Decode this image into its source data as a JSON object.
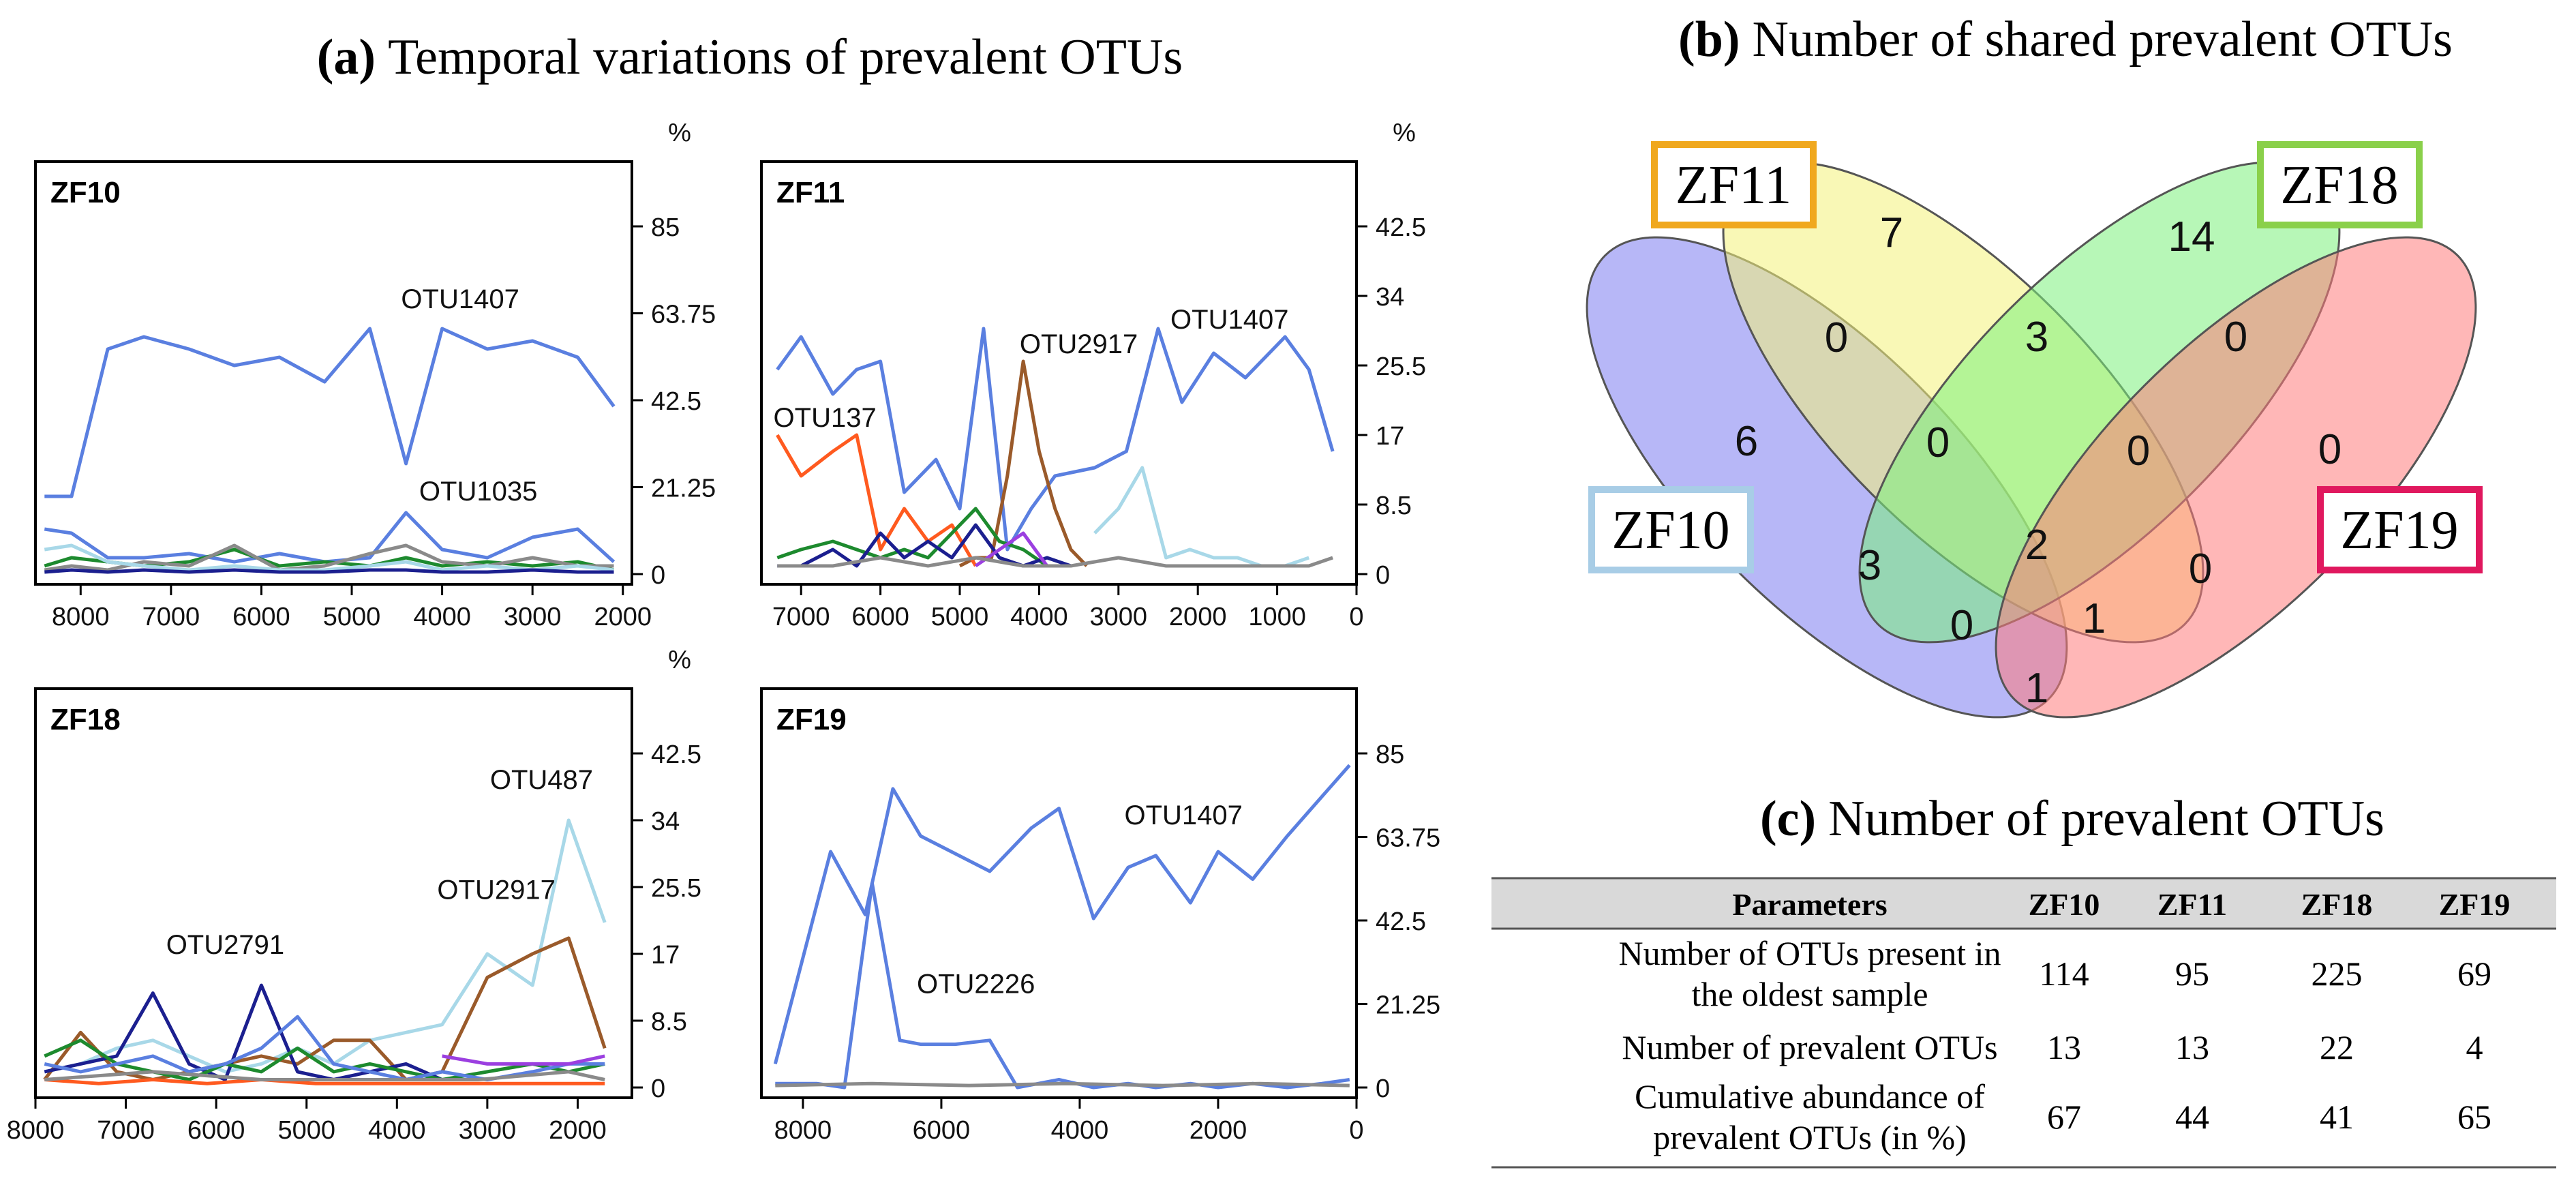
{
  "titles": {
    "a_tag": "(a)",
    "a_text": "Temporal variations of prevalent OTUs",
    "b_tag": "(b)",
    "b_text": "Number of shared prevalent OTUs",
    "c_tag": "(c)",
    "c_text": "Number of prevalent OTUs"
  },
  "colors": {
    "blue": "#5a7fe0",
    "lightblue": "#a8d8e8",
    "navy": "#1b1f8f",
    "green": "#1d8a2e",
    "brown": "#9a5a2a",
    "orange": "#ff5a1f",
    "gray": "#8a8a8a",
    "purple": "#9b3fe0"
  },
  "chart_data": [
    {
      "type": "line",
      "panel": "ZF10",
      "ylabel": "%",
      "xticks": [
        8000,
        7000,
        6000,
        5000,
        4000,
        3000,
        2000
      ],
      "xlim": [
        8500,
        1900
      ],
      "yticks": [
        0,
        21.25,
        42.5,
        63.75,
        85
      ],
      "ylim": [
        0,
        85
      ],
      "annotations": [
        {
          "text": "OTU1407",
          "x": 3800,
          "y": 65
        },
        {
          "text": "OTU1035",
          "x": 3600,
          "y": 18
        }
      ],
      "series": [
        {
          "color": "blue",
          "x": [
            8400,
            8100,
            7700,
            7300,
            6800,
            6300,
            5800,
            5300,
            4800,
            4400,
            4000,
            3500,
            3000,
            2500,
            2100
          ],
          "y": [
            19,
            19,
            55,
            58,
            55,
            51,
            53,
            47,
            60,
            27,
            60,
            55,
            57,
            53,
            41
          ]
        },
        {
          "color": "blue",
          "x": [
            8400,
            8100,
            7700,
            7300,
            6800,
            6300,
            5800,
            5300,
            4800,
            4400,
            4000,
            3500,
            3000,
            2500,
            2100
          ],
          "y": [
            11,
            10,
            4,
            4,
            5,
            3,
            5,
            3,
            4,
            15,
            6,
            4,
            9,
            11,
            3
          ]
        },
        {
          "color": "green",
          "x": [
            8400,
            8100,
            7700,
            7300,
            6800,
            6300,
            5800,
            5300,
            4800,
            4400,
            4000,
            3500,
            3000,
            2500,
            2100
          ],
          "y": [
            2,
            4,
            3,
            2,
            3,
            6,
            2,
            3,
            2,
            4,
            2,
            3,
            2,
            3,
            1
          ]
        },
        {
          "color": "gray",
          "x": [
            8400,
            8100,
            7700,
            7300,
            6800,
            6300,
            5800,
            5300,
            4800,
            4400,
            4000,
            3500,
            3000,
            2500,
            2100
          ],
          "y": [
            1,
            2,
            1,
            3,
            2,
            7,
            1,
            2,
            5,
            7,
            3,
            2,
            4,
            2,
            2
          ]
        },
        {
          "color": "lightblue",
          "x": [
            8400,
            8100,
            7700,
            7300,
            6800,
            6300,
            5800,
            5300,
            4800,
            4400,
            4000,
            3500,
            3000,
            2500,
            2100
          ],
          "y": [
            6,
            7,
            3,
            2,
            1,
            2,
            1,
            1,
            2,
            3,
            1,
            2,
            1,
            2,
            1
          ]
        },
        {
          "color": "navy",
          "x": [
            8400,
            8100,
            7700,
            7300,
            6800,
            6300,
            5800,
            5300,
            4800,
            4400,
            4000,
            3500,
            3000,
            2500,
            2100
          ],
          "y": [
            0.5,
            1,
            0.5,
            1,
            0.5,
            1,
            0.5,
            0.5,
            1,
            1,
            0.5,
            0.5,
            1,
            0.5,
            0.5
          ]
        }
      ]
    },
    {
      "type": "line",
      "panel": "ZF11",
      "ylabel": "%",
      "xticks": [
        7000,
        6000,
        5000,
        4000,
        3000,
        2000,
        1000,
        0
      ],
      "xlim": [
        7500,
        0
      ],
      "yticks": [
        0,
        8.5,
        17,
        25.5,
        34,
        42.5
      ],
      "ylim": [
        0,
        42.5
      ],
      "annotations": [
        {
          "text": "OTU2917",
          "x": 3500,
          "y": 27
        },
        {
          "text": "OTU1407",
          "x": 1600,
          "y": 30
        },
        {
          "text": "OTU137",
          "x": 6700,
          "y": 18
        }
      ],
      "series": [
        {
          "color": "blue",
          "x": [
            7300,
            7000,
            6600,
            6300,
            6000,
            5700,
            5300,
            5000,
            4700,
            4400,
            4100,
            3800,
            3300,
            2900,
            2500,
            2200,
            1800,
            1400,
            900,
            600,
            300
          ],
          "y": [
            25,
            29,
            22,
            25,
            26,
            10,
            14,
            8,
            30,
            3,
            8,
            12,
            13,
            15,
            30,
            21,
            27,
            24,
            29,
            25,
            15
          ]
        },
        {
          "color": "brown",
          "x": [
            5000,
            4800,
            4600,
            4400,
            4200,
            4000,
            3800,
            3600,
            3400
          ],
          "y": [
            1,
            2,
            2,
            12,
            26,
            15,
            8,
            3,
            1
          ]
        },
        {
          "color": "orange",
          "x": [
            7300,
            7000,
            6600,
            6300,
            6000,
            5700,
            5400,
            5100,
            4800
          ],
          "y": [
            17,
            12,
            15,
            17,
            3,
            8,
            4,
            6,
            1
          ]
        },
        {
          "color": "lightblue",
          "x": [
            3300,
            3000,
            2700,
            2400,
            2100,
            1800,
            1500,
            1200,
            900,
            600
          ],
          "y": [
            5,
            8,
            13,
            2,
            3,
            2,
            2,
            1,
            1,
            2
          ]
        },
        {
          "color": "green",
          "x": [
            7300,
            7000,
            6600,
            6300,
            6000,
            5700,
            5400,
            5100,
            4800,
            4500,
            4200,
            3900,
            3600
          ],
          "y": [
            2,
            3,
            4,
            3,
            2,
            3,
            2,
            5,
            8,
            4,
            3,
            1,
            1
          ]
        },
        {
          "color": "navy",
          "x": [
            7300,
            7000,
            6600,
            6300,
            6000,
            5700,
            5400,
            5100,
            4800,
            4500,
            4200,
            3900,
            3600
          ],
          "y": [
            1,
            1,
            3,
            1,
            5,
            2,
            4,
            2,
            6,
            2,
            1,
            2,
            1
          ]
        },
        {
          "color": "purple",
          "x": [
            4800,
            4500,
            4200,
            3900
          ],
          "y": [
            1,
            3,
            5,
            1
          ]
        },
        {
          "color": "gray",
          "x": [
            7300,
            6600,
            6000,
            5400,
            4800,
            4200,
            3600,
            3000,
            2400,
            1800,
            1200,
            600,
            300
          ],
          "y": [
            1,
            1,
            2,
            1,
            2,
            1,
            1,
            2,
            1,
            1,
            1,
            1,
            2
          ]
        }
      ]
    },
    {
      "type": "line",
      "panel": "ZF18",
      "ylabel": "%",
      "xticks": [
        8000,
        7000,
        6000,
        5000,
        4000,
        3000,
        2000
      ],
      "xlim": [
        8000,
        1400
      ],
      "yticks": [
        0,
        8.5,
        17,
        25.5,
        34,
        42.5
      ],
      "ylim": [
        0,
        42.5
      ],
      "annotations": [
        {
          "text": "OTU487",
          "x": 2400,
          "y": 38
        },
        {
          "text": "OTU2917",
          "x": 2900,
          "y": 24
        },
        {
          "text": "OTU2791",
          "x": 5900,
          "y": 17
        }
      ],
      "series": [
        {
          "color": "lightblue",
          "x": [
            7900,
            7500,
            7100,
            6700,
            6300,
            5900,
            5500,
            5100,
            4700,
            4300,
            3900,
            3500,
            3000,
            2500,
            2100,
            1700
          ],
          "y": [
            2,
            3,
            5,
            6,
            4,
            2,
            3,
            5,
            3,
            6,
            7,
            8,
            17,
            13,
            34,
            21
          ]
        },
        {
          "color": "brown",
          "x": [
            7900,
            7500,
            7100,
            6700,
            6300,
            5900,
            5500,
            5100,
            4700,
            4300,
            3900,
            3500,
            3000,
            2500,
            2100,
            1700
          ],
          "y": [
            1,
            7,
            2,
            1,
            2,
            3,
            4,
            3,
            6,
            6,
            1,
            2,
            14,
            17,
            19,
            5
          ]
        },
        {
          "color": "navy",
          "x": [
            7900,
            7500,
            7100,
            6700,
            6300,
            5900,
            5500,
            5100,
            4700,
            4300,
            3900,
            3500
          ],
          "y": [
            2,
            3,
            4,
            12,
            3,
            1,
            13,
            2,
            1,
            2,
            3,
            1
          ]
        },
        {
          "color": "green",
          "x": [
            7900,
            7500,
            7100,
            6700,
            6300,
            5900,
            5500,
            5100,
            4700,
            4300,
            3900,
            3500,
            3000,
            2500,
            2100,
            1700
          ],
          "y": [
            4,
            6,
            3,
            2,
            1,
            3,
            2,
            5,
            2,
            3,
            2,
            1,
            2,
            3,
            2,
            3
          ]
        },
        {
          "color": "blue",
          "x": [
            7900,
            7500,
            7100,
            6700,
            6300,
            5900,
            5500,
            5100,
            4700,
            4300,
            3900,
            3500,
            3000,
            2500,
            2100,
            1700
          ],
          "y": [
            3,
            2,
            3,
            4,
            2,
            3,
            5,
            9,
            3,
            2,
            1,
            2,
            1,
            2,
            3,
            3
          ]
        },
        {
          "color": "purple",
          "x": [
            3500,
            3000,
            2500,
            2100,
            1700
          ],
          "y": [
            4,
            3,
            3,
            3,
            4
          ]
        },
        {
          "color": "orange",
          "x": [
            7900,
            7300,
            6700,
            6100,
            5500,
            4900,
            4300,
            3700,
            3100,
            2500,
            2100,
            1700
          ],
          "y": [
            1,
            0.5,
            1,
            0.5,
            1,
            0.5,
            0.5,
            0.5,
            0.5,
            0.5,
            0.5,
            0.5
          ]
        },
        {
          "color": "gray",
          "x": [
            7900,
            6700,
            5500,
            4300,
            3100,
            2100,
            1700
          ],
          "y": [
            1,
            2,
            1,
            1,
            1,
            2,
            1
          ]
        }
      ]
    },
    {
      "type": "line",
      "panel": "ZF19",
      "ylabel": "",
      "xticks": [
        8000,
        6000,
        4000,
        2000,
        0
      ],
      "xlim": [
        8600,
        0
      ],
      "yticks": [
        0,
        21.25,
        42.5,
        63.75,
        85
      ],
      "ylim": [
        0,
        85
      ],
      "annotations": [
        {
          "text": "OTU1407",
          "x": 2500,
          "y": 67
        },
        {
          "text": "OTU2226",
          "x": 5500,
          "y": 24
        }
      ],
      "series": [
        {
          "color": "blue",
          "x": [
            8400,
            7600,
            7100,
            6700,
            6300,
            5300,
            4700,
            4300,
            3800,
            3300,
            2900,
            2400,
            2000,
            1500,
            1000,
            500,
            100
          ],
          "y": [
            6,
            60,
            44,
            76,
            64,
            55,
            66,
            71,
            43,
            56,
            59,
            47,
            60,
            53,
            64,
            74,
            82
          ]
        },
        {
          "color": "blue",
          "x": [
            8400,
            7800,
            7400,
            7000,
            6600,
            6300,
            5800,
            5300,
            4900,
            4300,
            3800,
            3300,
            2900,
            2400,
            2000,
            1500,
            1000,
            500,
            100
          ],
          "y": [
            1,
            1,
            0,
            52,
            12,
            11,
            11,
            12,
            0,
            2,
            0,
            1,
            0,
            1,
            0,
            1,
            0,
            1,
            2
          ]
        },
        {
          "color": "gray",
          "x": [
            8400,
            7000,
            5600,
            4200,
            2800,
            1400,
            100
          ],
          "y": [
            0.5,
            1,
            0.5,
            1,
            0.5,
            1,
            0.5
          ]
        }
      ]
    }
  ],
  "venn": {
    "sets": [
      {
        "label": "ZF10",
        "color": "#7b7bf0",
        "border": "#a8cde6"
      },
      {
        "label": "ZF11",
        "color": "#f4f27a",
        "border": "#f0a81e"
      },
      {
        "label": "ZF18",
        "color": "#7cf07c",
        "border": "#8ad04a"
      },
      {
        "label": "ZF19",
        "color": "#ff7b7b",
        "border": "#e0185e"
      }
    ],
    "regions": {
      "zf10_only": "6",
      "zf11_only": "7",
      "zf18_only": "14",
      "zf19_only": "0",
      "zf10_zf11": "0",
      "zf11_zf18": "3",
      "zf18_zf19": "0",
      "zf10_zf11_zf18": "0",
      "zf11_zf18_zf19": "0",
      "zf10_zf18": "3",
      "all": "2",
      "zf11_zf19": "0",
      "zf10_zf18_zf19": "0",
      "zf10_zf11_zf19": "1",
      "zf10_zf19": "1"
    }
  },
  "table": {
    "headers": [
      "Parameters",
      "ZF10",
      "ZF11",
      "ZF18",
      "ZF19"
    ],
    "rows": [
      {
        "label_lines": [
          "Number of OTUs present in",
          "the oldest sample"
        ],
        "values": [
          "114",
          "95",
          "225",
          "69"
        ]
      },
      {
        "label_lines": [
          "Number of prevalent OTUs"
        ],
        "values": [
          "13",
          "13",
          "22",
          "4"
        ]
      },
      {
        "label_lines": [
          "Cumulative abundance of",
          "prevalent OTUs (in %)"
        ],
        "values": [
          "67",
          "44",
          "41",
          "65"
        ]
      }
    ]
  }
}
